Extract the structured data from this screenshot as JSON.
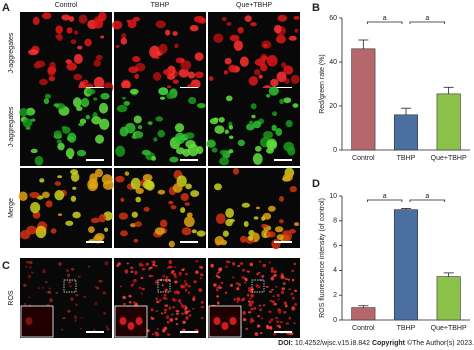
{
  "panel_letters": {
    "a": "A",
    "b": "B",
    "c": "C",
    "d": "D"
  },
  "column_headers": [
    "Control",
    "TBHP",
    "Que+TBHP"
  ],
  "row_labels": [
    "J-aggregates",
    "J-aggregates",
    "Merge",
    "ROS"
  ],
  "footer": {
    "doi_label": "DOI:",
    "doi": "10.4252/wjsc.v15.i8.842",
    "copyright_label": "Copyright",
    "copyright": "©The Author(s) 2023."
  },
  "chart_data": [
    {
      "type": "bar",
      "ylabel": "Red/green rate (%)",
      "categories": [
        "Control",
        "TBHP",
        "Que+TBHP"
      ],
      "values": [
        46,
        16,
        25.5
      ],
      "errors": [
        4,
        3,
        3
      ],
      "colors": [
        "#b5676b",
        "#4a6fa0",
        "#8bc34a"
      ],
      "ylim": [
        0,
        60
      ],
      "yticks": [
        0,
        20,
        40,
        60
      ],
      "annotations": [
        "a",
        "a"
      ]
    },
    {
      "type": "bar",
      "ylabel": "ROS fluorescence intensity (of control)",
      "categories": [
        "Control",
        "TBHP",
        "Que+TBHP"
      ],
      "values": [
        1.0,
        8.9,
        3.5
      ],
      "errors": [
        0.15,
        0.1,
        0.3
      ],
      "colors": [
        "#b5676b",
        "#4a6fa0",
        "#8bc34a"
      ],
      "ylim": [
        0,
        10
      ],
      "yticks": [
        0,
        2,
        4,
        6,
        8,
        10
      ],
      "annotations": [
        "a",
        "a"
      ]
    }
  ]
}
